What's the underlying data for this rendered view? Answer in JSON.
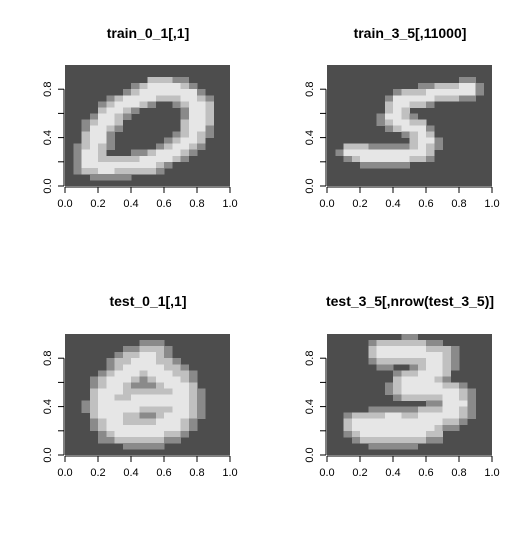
{
  "chart_data": [
    {
      "type": "heatmap",
      "title": "train_0_1[,1]",
      "xlabel": "",
      "ylabel": "",
      "xlim": [
        0,
        1
      ],
      "ylim": [
        0,
        1
      ],
      "x_ticks": [
        "0.0",
        "0.2",
        "0.4",
        "0.6",
        "0.8",
        "1.0"
      ],
      "y_ticks": [
        "0.0",
        "0.4",
        "0.8"
      ],
      "colors": {
        "background": "#4d4d4d",
        "ink": "#e6e6e6"
      },
      "digit": "0",
      "grid": {
        "rows": 20,
        "cols": 20
      },
      "strokes": [
        [
          [
            0.15,
            0.19
          ],
          [
            0.2,
            0.46
          ],
          [
            0.32,
            0.65
          ],
          [
            0.5,
            0.76
          ],
          [
            0.65,
            0.8
          ],
          [
            0.75,
            0.75
          ],
          [
            0.82,
            0.62
          ],
          [
            0.78,
            0.42
          ],
          [
            0.65,
            0.28
          ],
          [
            0.52,
            0.2
          ],
          [
            0.38,
            0.17
          ],
          [
            0.22,
            0.16
          ],
          [
            0.15,
            0.19
          ]
        ],
        [
          [
            0.5,
            0.76
          ],
          [
            0.57,
            0.82
          ],
          [
            0.63,
            0.8
          ]
        ]
      ],
      "stroke_width": 0.075
    },
    {
      "type": "heatmap",
      "title": "train_3_5[,11000]",
      "xlabel": "",
      "ylabel": "",
      "xlim": [
        0,
        1
      ],
      "ylim": [
        0,
        1
      ],
      "x_ticks": [
        "0.0",
        "0.2",
        "0.4",
        "0.6",
        "0.8",
        "1.0"
      ],
      "y_ticks": [
        "0.0",
        "0.4",
        "0.8"
      ],
      "colors": {
        "background": "#4d4d4d",
        "ink": "#e6e6e6"
      },
      "digit": "5",
      "grid": {
        "rows": 20,
        "cols": 20
      },
      "strokes": [
        [
          [
            0.86,
            0.8
          ],
          [
            0.65,
            0.76
          ],
          [
            0.45,
            0.7
          ],
          [
            0.4,
            0.56
          ],
          [
            0.48,
            0.5
          ],
          [
            0.56,
            0.46
          ],
          [
            0.6,
            0.36
          ],
          [
            0.55,
            0.27
          ],
          [
            0.4,
            0.24
          ],
          [
            0.25,
            0.25
          ],
          [
            0.16,
            0.28
          ]
        ]
      ],
      "stroke_width": 0.065
    },
    {
      "type": "heatmap",
      "title": "test_0_1[,1]",
      "xlabel": "",
      "ylabel": "",
      "xlim": [
        0,
        1
      ],
      "ylim": [
        0,
        1
      ],
      "x_ticks": [
        "0.0",
        "0.2",
        "0.4",
        "0.6",
        "0.8",
        "1.0"
      ],
      "y_ticks": [
        "0.0",
        "0.4",
        "0.8"
      ],
      "colors": {
        "background": "#4d4d4d",
        "ink": "#e6e6e6"
      },
      "digit": "0",
      "grid": {
        "rows": 20,
        "cols": 20
      },
      "strokes": [
        [
          [
            0.52,
            0.82
          ],
          [
            0.38,
            0.7
          ],
          [
            0.28,
            0.55
          ],
          [
            0.25,
            0.38
          ],
          [
            0.32,
            0.22
          ],
          [
            0.48,
            0.18
          ],
          [
            0.63,
            0.24
          ],
          [
            0.72,
            0.4
          ],
          [
            0.68,
            0.58
          ],
          [
            0.55,
            0.72
          ],
          [
            0.47,
            0.78
          ]
        ],
        [
          [
            0.3,
            0.38
          ],
          [
            0.45,
            0.44
          ],
          [
            0.62,
            0.47
          ]
        ]
      ],
      "stroke_width": 0.1
    },
    {
      "type": "heatmap",
      "title": "test_3_5[,nrow(test_3_5)]",
      "xlabel": "",
      "ylabel": "",
      "xlim": [
        0,
        1
      ],
      "ylim": [
        0,
        1
      ],
      "x_ticks": [
        "0.0",
        "0.2",
        "0.4",
        "0.6",
        "0.8",
        "1.0"
      ],
      "y_ticks": [
        "0.0",
        "0.4",
        "0.8"
      ],
      "colors": {
        "background": "#4d4d4d",
        "ink": "#e6e6e6"
      },
      "digit": "3",
      "grid": {
        "rows": 20,
        "cols": 20
      },
      "strokes": [
        [
          [
            0.35,
            0.84
          ],
          [
            0.52,
            0.86
          ],
          [
            0.68,
            0.8
          ],
          [
            0.65,
            0.68
          ],
          [
            0.5,
            0.6
          ],
          [
            0.48,
            0.56
          ],
          [
            0.62,
            0.55
          ],
          [
            0.76,
            0.5
          ],
          [
            0.78,
            0.4
          ],
          [
            0.7,
            0.32
          ],
          [
            0.55,
            0.28
          ],
          [
            0.4,
            0.24
          ],
          [
            0.25,
            0.2
          ]
        ],
        [
          [
            0.25,
            0.2
          ],
          [
            0.38,
            0.25
          ],
          [
            0.5,
            0.24
          ],
          [
            0.6,
            0.22
          ],
          [
            0.45,
            0.18
          ],
          [
            0.3,
            0.18
          ]
        ],
        [
          [
            0.2,
            0.24
          ],
          [
            0.3,
            0.27
          ],
          [
            0.42,
            0.28
          ]
        ]
      ],
      "stroke_width": 0.09
    }
  ]
}
